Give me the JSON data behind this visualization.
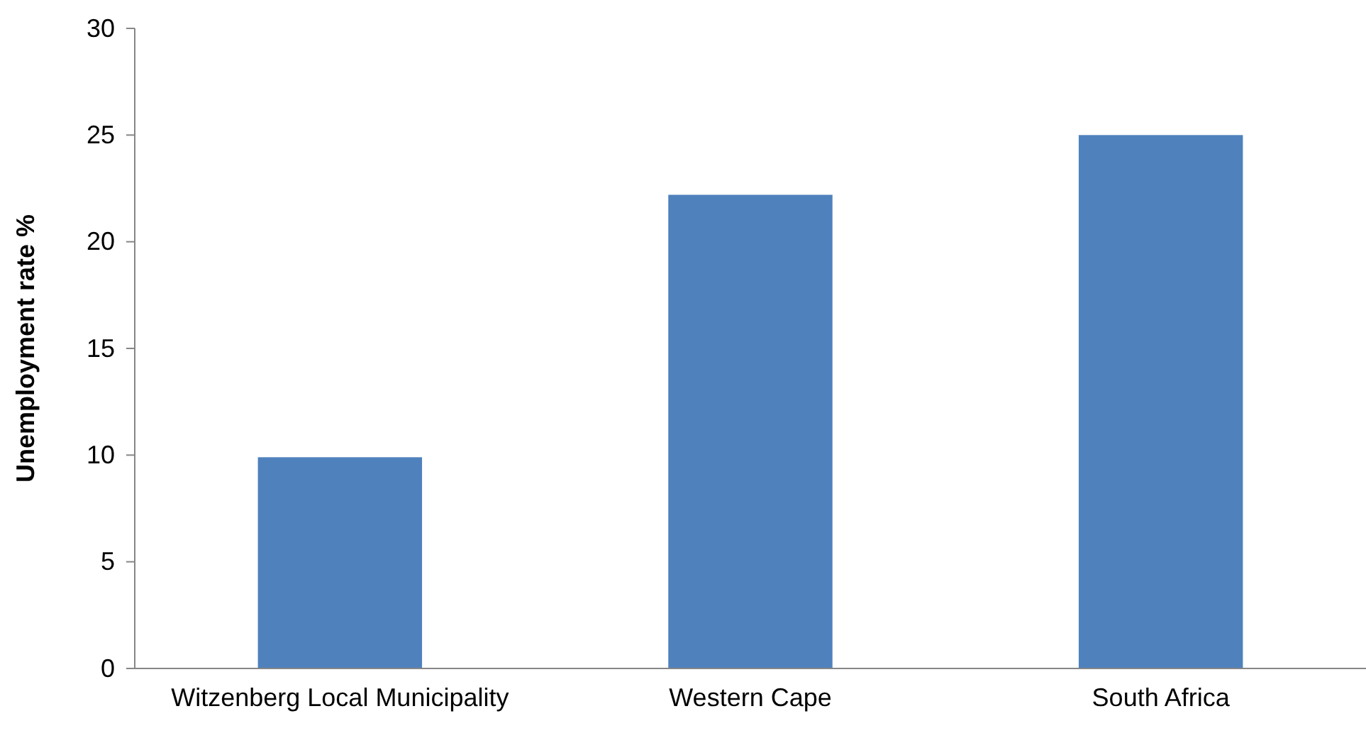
{
  "chart_data": {
    "type": "bar",
    "ylabel": "Unemployment rate %",
    "categories": [
      "Witzenberg Local Municipality",
      "Western Cape",
      "South Africa"
    ],
    "values": [
      9.9,
      22.2,
      25.0
    ],
    "color": "#4f81bd",
    "ylim": [
      0,
      30
    ],
    "yticks": [
      0,
      5,
      10,
      15,
      20,
      25,
      30
    ],
    "grid": false
  }
}
